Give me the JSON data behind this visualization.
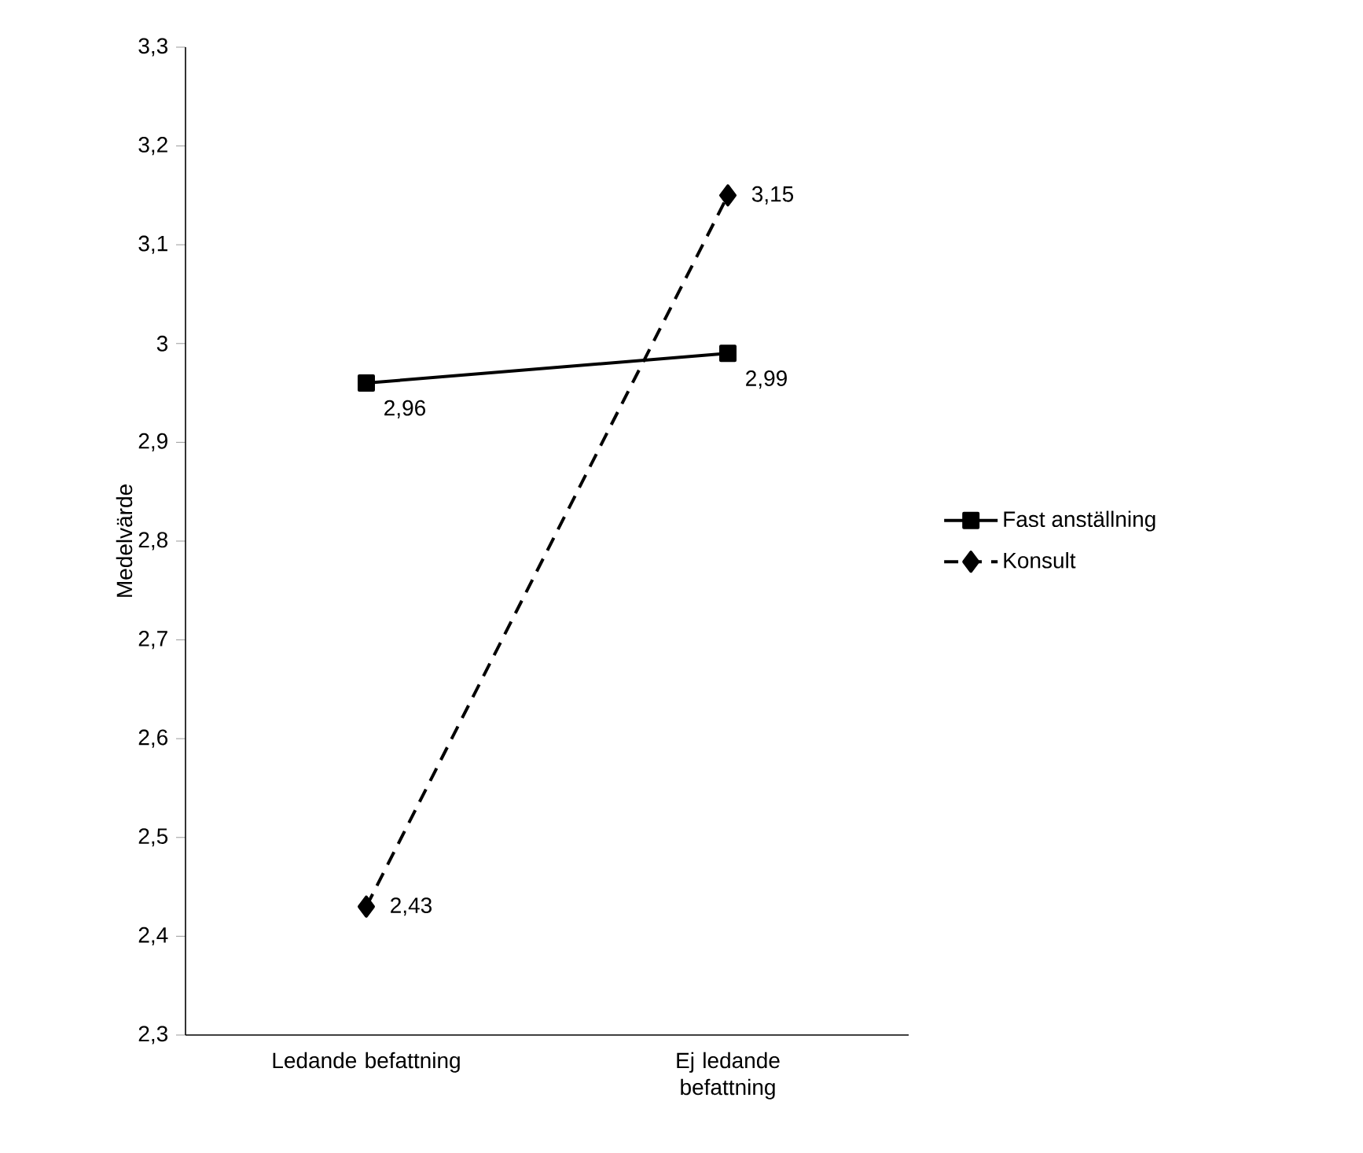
{
  "chart_data": {
    "type": "line",
    "ylabel": "Medelvärde",
    "categories": [
      "Ledande befattning",
      "Ej ledande befattning"
    ],
    "series": [
      {
        "name": "Fast anställning",
        "color": "#000000",
        "values": [
          2.96,
          2.99
        ],
        "value_labels": [
          "2,96",
          "2,99"
        ],
        "marker": "square",
        "line_style": "solid"
      },
      {
        "name": "Konsult",
        "color": "#000000",
        "values": [
          2.43,
          3.15
        ],
        "value_labels": [
          "2,43",
          "3,15"
        ],
        "marker": "diamond",
        "line_style": "dashed"
      }
    ],
    "ylim": [
      2.3,
      3.3
    ],
    "yticks": [
      {
        "value": 2.3,
        "label": "2,3"
      },
      {
        "value": 2.4,
        "label": "2,4"
      },
      {
        "value": 2.5,
        "label": "2,5"
      },
      {
        "value": 2.6,
        "label": "2,6"
      },
      {
        "value": 2.7,
        "label": "2,7"
      },
      {
        "value": 2.8,
        "label": "2,8"
      },
      {
        "value": 2.9,
        "label": "2,9"
      },
      {
        "value": 3,
        "label": "3"
      },
      {
        "value": 3.1,
        "label": "3,1"
      },
      {
        "value": 3.2,
        "label": "3,2"
      },
      {
        "value": 3.3,
        "label": "3,3"
      }
    ],
    "grid": false,
    "legend": "right"
  }
}
